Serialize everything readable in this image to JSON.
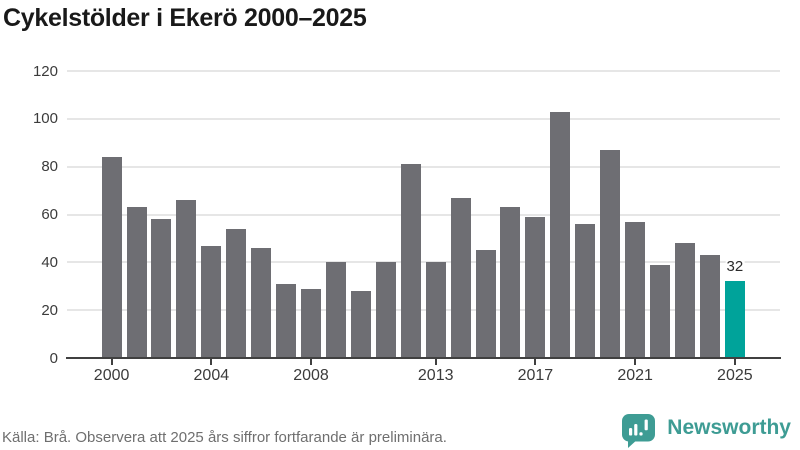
{
  "header": {
    "title": "Cykelstölder i Ekerö 2000–2025"
  },
  "chart_data": {
    "type": "bar",
    "title": "Cykelstölder i Ekerö 2000–2025",
    "categories": [
      "2000",
      "2001",
      "2002",
      "2003",
      "2004",
      "2005",
      "2006",
      "2007",
      "2008",
      "2009",
      "2010",
      "2011",
      "2012",
      "2013",
      "2014",
      "2015",
      "2016",
      "2017",
      "2018",
      "2019",
      "2020",
      "2021",
      "2022",
      "2023",
      "2024",
      "2025"
    ],
    "values": [
      84,
      63,
      58,
      66,
      47,
      54,
      46,
      31,
      29,
      40,
      28,
      40,
      81,
      40,
      67,
      45,
      63,
      59,
      103,
      56,
      87,
      57,
      39,
      48,
      43,
      32
    ],
    "ylim": [
      0,
      120
    ],
    "y_ticks": [
      0,
      20,
      40,
      60,
      80,
      100,
      120
    ],
    "x_tick_labels": [
      "2000",
      "2004",
      "2008",
      "2013",
      "2017",
      "2021",
      "2025"
    ],
    "grid": "horizontal",
    "legend": "none",
    "highlight": {
      "category": "2025",
      "value": 32,
      "label": "32"
    },
    "colors": {
      "bar": "#6E6E73",
      "highlight": "#00A39A",
      "axis": "#404040",
      "gridline": "#E6E6E6",
      "tick_label": "#3B3B3B",
      "value_label": "#2B2B2B"
    }
  },
  "footer": {
    "source_note": "Källa: Brå. Observera att 2025 års siffror fortfarande är preliminära.",
    "brand": {
      "name": "Newsworthy",
      "color": "#3E9C94",
      "icon": "newsworthy-speech-bubble-chart-icon"
    }
  }
}
